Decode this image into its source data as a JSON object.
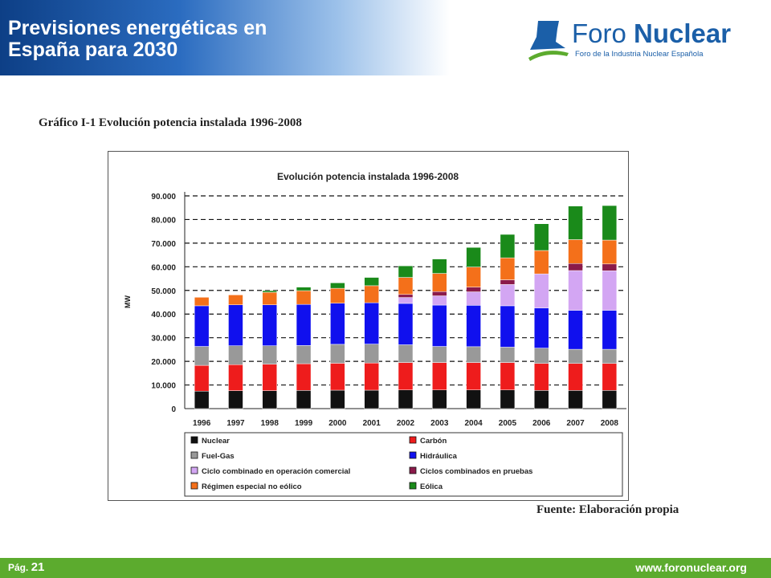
{
  "header": {
    "title_line1": "Previsiones energéticas en",
    "title_line2": "España para 2030"
  },
  "logo": {
    "name_light": "Foro ",
    "name_bold": "Nuclear",
    "subtitle": "Foro de la Industria Nuclear Española"
  },
  "figure": {
    "caption": "Gráfico I-1 Evolución potencia instalada 1996-2008",
    "source": "Fuente: Elaboración propia"
  },
  "footer": {
    "page_label": "Pág.",
    "page_number": "21",
    "url": "www.foronuclear.org"
  },
  "chart_data": {
    "type": "bar",
    "stacked": true,
    "title": "Evolución potencia instalada 1996-2008",
    "ylabel": "MW",
    "xlabel": "",
    "ylim": [
      0,
      90000
    ],
    "yticks": [
      "0",
      "10.000",
      "20.000",
      "30.000",
      "40.000",
      "50.000",
      "60.000",
      "70.000",
      "80.000",
      "90.000"
    ],
    "grid": "horizontal dashed",
    "legend_position": "bottom",
    "categories": [
      "1996",
      "1997",
      "1998",
      "1999",
      "2000",
      "2001",
      "2002",
      "2003",
      "2004",
      "2005",
      "2006",
      "2007",
      "2008"
    ],
    "series": [
      {
        "name": "Nuclear",
        "color": "#111111",
        "values": [
          7400,
          7600,
          7600,
          7700,
          7800,
          7800,
          7900,
          7900,
          7900,
          7900,
          7700,
          7700,
          7700
        ]
      },
      {
        "name": "Carbón",
        "color": "#ee1c1c",
        "values": [
          10900,
          11000,
          11200,
          11300,
          11400,
          11500,
          11600,
          11600,
          11600,
          11600,
          11400,
          11400,
          11400
        ]
      },
      {
        "name": "Fuel-Gas",
        "color": "#999999",
        "values": [
          8000,
          8000,
          7800,
          7700,
          8000,
          8000,
          7500,
          6800,
          6700,
          6500,
          6500,
          6000,
          6000
        ]
      },
      {
        "name": "Hidráulica",
        "color": "#1010ee",
        "values": [
          17200,
          17300,
          17300,
          17400,
          17400,
          17500,
          17500,
          17500,
          17500,
          17500,
          17000,
          16500,
          16500
        ]
      },
      {
        "name": "Ciclo combinado en operación comercial",
        "color": "#d3a6f3",
        "values": [
          0,
          0,
          0,
          0,
          0,
          0,
          2500,
          3900,
          5700,
          9000,
          14400,
          16800,
          16700
        ]
      },
      {
        "name": "Ciclos combinados en pruebas",
        "color": "#8b1a4a",
        "values": [
          0,
          0,
          0,
          0,
          0,
          0,
          1300,
          1800,
          2000,
          2000,
          0,
          3000,
          2900
        ]
      },
      {
        "name": "Régimen especial no eólico",
        "color": "#f4701a",
        "values": [
          3600,
          4200,
          5300,
          5800,
          6300,
          7200,
          7200,
          7700,
          8500,
          9300,
          9900,
          10100,
          10100
        ]
      },
      {
        "name": "Eólica",
        "color": "#1a8a1a",
        "values": [
          0,
          0,
          700,
          1500,
          2300,
          3500,
          4900,
          6100,
          8300,
          9900,
          11300,
          14200,
          14600
        ]
      }
    ]
  }
}
